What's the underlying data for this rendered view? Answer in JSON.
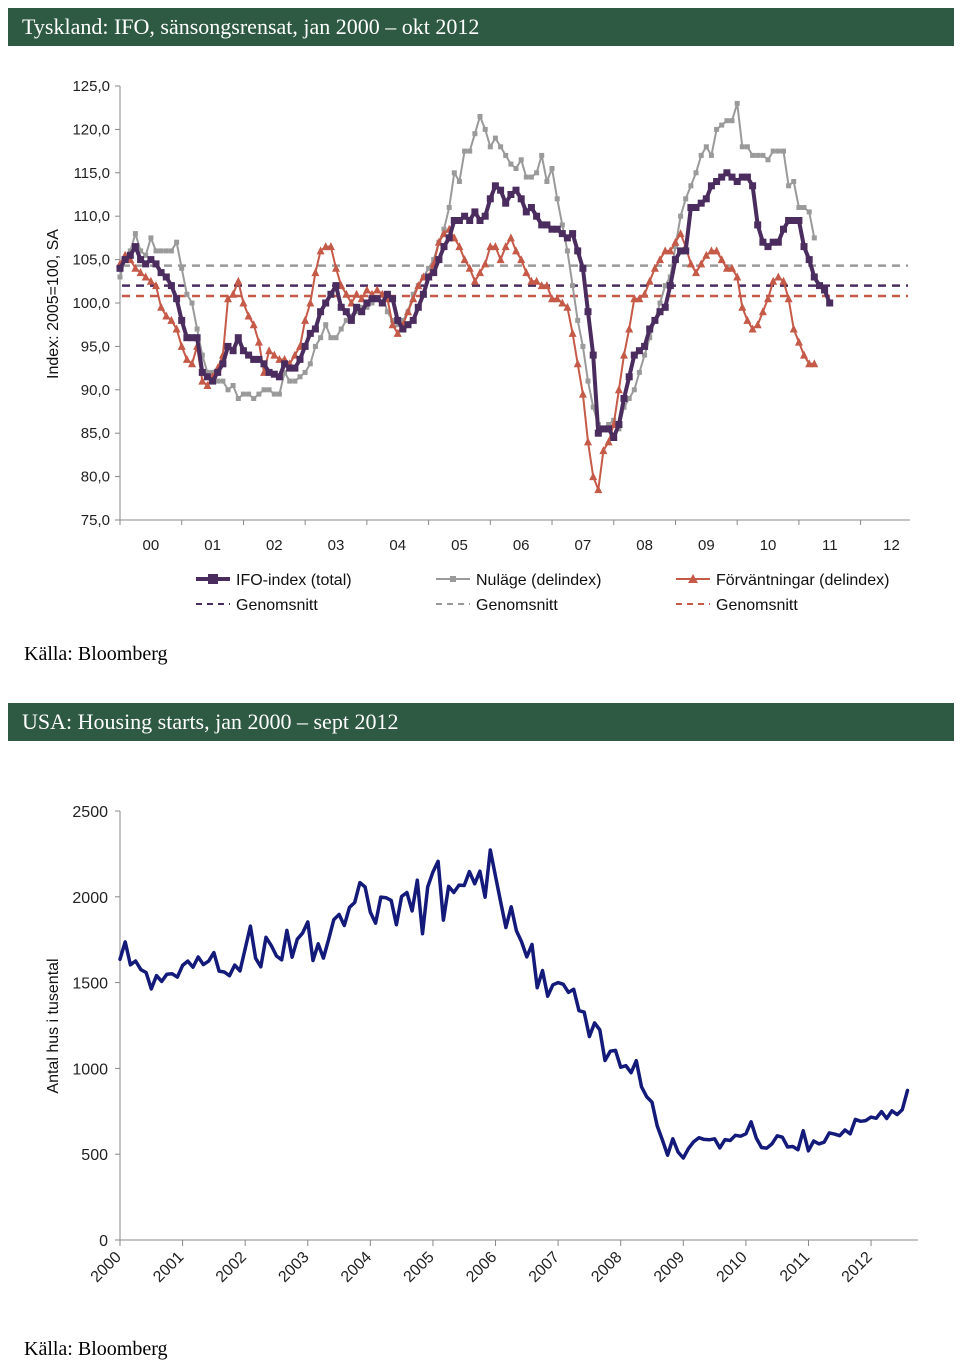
{
  "charts": {
    "ifo": {
      "header": "Tyskland: IFO, sänsongsrensat, jan 2000 – okt 2012",
      "source": "Källa: Bloomberg"
    },
    "housing": {
      "header": "USA: Housing starts, jan 2000 – sept 2012",
      "source": "Källa: Bloomberg"
    }
  },
  "chart_data": [
    {
      "type": "line",
      "title": "Tyskland: IFO, sänsongsrensat, jan 2000 – okt 2012",
      "ylabel": "Index: 2005=100, SA",
      "xlabel": "",
      "ylim": [
        75,
        125
      ],
      "yticks": [
        "75,0",
        "80,0",
        "85,0",
        "90,0",
        "95,0",
        "100,0",
        "105,0",
        "110,0",
        "115,0",
        "120,0",
        "125,0"
      ],
      "xticks": [
        "00",
        "01",
        "02",
        "03",
        "04",
        "05",
        "06",
        "07",
        "08",
        "09",
        "10",
        "11",
        "12"
      ],
      "x_start": 2000.0,
      "x_step": 0.08333,
      "series": [
        {
          "name": "IFO-index (total)",
          "color": "#4b2c5e",
          "marker": "square",
          "width": 4,
          "values": [
            104,
            105,
            105.5,
            106.5,
            105,
            104.5,
            105,
            104.5,
            103.5,
            103,
            102,
            100.5,
            98,
            96,
            96,
            96,
            92,
            91.5,
            91,
            92,
            93,
            95,
            94.5,
            96,
            94.5,
            94,
            93.5,
            93.5,
            93,
            92,
            91.8,
            91.5,
            93,
            92.5,
            92.5,
            93.5,
            95,
            96.5,
            97,
            99,
            100,
            101,
            102,
            99.5,
            99,
            98,
            99.5,
            99,
            100,
            100.5,
            100.5,
            100,
            101,
            100.5,
            98,
            97,
            97.5,
            98,
            99.5,
            101,
            103,
            103.5,
            105,
            106.5,
            107.5,
            109.5,
            109.5,
            110,
            109.5,
            110.5,
            109.5,
            110,
            112,
            113.5,
            113,
            111.5,
            112.5,
            113,
            112,
            110.5,
            111,
            110,
            109,
            109,
            108.5,
            108.5,
            108,
            107.5,
            108,
            106,
            104,
            99,
            94,
            85,
            85.5,
            85.5,
            84.5,
            86,
            89,
            91.5,
            94,
            94.5,
            95,
            97,
            98,
            99,
            99.5,
            102,
            105,
            106,
            106,
            111,
            111,
            111.5,
            112,
            113.5,
            114,
            114.5,
            115,
            114.5,
            114,
            114.5,
            114.5,
            113.5,
            109,
            107,
            106.5,
            107,
            107,
            108.5,
            109.5,
            109.5,
            109.5,
            106.5,
            105,
            103,
            102,
            101.5,
            100
          ]
        },
        {
          "name": "Nuläge (delindex)",
          "color": "#9a9a9a",
          "marker": "square",
          "width": 2,
          "values": [
            103,
            105,
            106,
            108,
            106,
            105.5,
            107.5,
            106,
            106,
            106,
            106,
            107,
            104,
            101,
            100,
            97,
            94,
            92,
            92,
            91,
            91,
            90,
            90.5,
            89,
            89.5,
            89.5,
            89,
            89.5,
            90,
            90,
            89.5,
            89.5,
            92,
            91,
            91,
            91.5,
            92,
            93,
            95,
            96,
            97.5,
            96,
            96,
            97,
            98,
            98.5,
            99,
            99.5,
            99.5,
            100,
            100.5,
            101,
            99,
            98,
            97.5,
            98,
            99,
            101,
            102,
            103,
            104,
            105,
            107,
            108.5,
            111,
            115,
            114,
            117.5,
            117.5,
            119.5,
            121.5,
            120,
            118,
            119,
            118,
            117,
            116,
            115.5,
            116.5,
            114.5,
            114.5,
            115,
            117,
            114,
            115.5,
            112,
            109,
            106,
            102,
            98,
            95,
            91,
            88,
            86,
            85.5,
            86,
            86.5,
            85.5,
            88,
            89,
            90,
            92,
            94,
            96,
            98,
            100,
            102,
            103,
            106.5,
            110,
            112,
            113.5,
            115,
            117,
            118,
            117,
            120,
            120.5,
            121,
            121,
            123,
            118,
            118,
            117,
            117,
            117,
            116.5,
            117.5,
            117.5,
            117.5,
            113.5,
            114,
            111,
            111,
            110.5,
            107.5
          ]
        },
        {
          "name": "Förväntningar (delindex)",
          "color": "#c55a48",
          "marker": "triangle",
          "width": 2,
          "values": [
            104.5,
            105.5,
            105,
            104,
            103.5,
            103,
            102.5,
            102,
            99.5,
            98.5,
            98,
            97,
            95,
            93.5,
            93,
            95,
            91,
            90.5,
            91.5,
            92.5,
            94,
            100.5,
            101,
            102.5,
            100,
            98.5,
            97.5,
            95.5,
            92,
            94.5,
            94,
            93.5,
            93.5,
            93,
            94,
            95,
            98,
            100,
            103.5,
            106,
            106.5,
            106.5,
            104,
            102,
            101,
            100,
            101,
            100.5,
            101.5,
            101,
            101.5,
            101,
            100.5,
            97.5,
            96.5,
            97.5,
            99,
            100.5,
            102,
            103,
            103,
            104.5,
            107,
            108,
            108.5,
            107.5,
            106.5,
            105,
            104,
            102.5,
            103.5,
            104.5,
            106.5,
            106.5,
            105,
            106.5,
            107.5,
            106,
            105,
            103.5,
            102.5,
            102.5,
            102,
            102,
            100.5,
            100.5,
            100,
            99.5,
            96.5,
            93,
            89.5,
            84,
            80,
            78.5,
            83,
            84,
            86,
            90,
            94,
            97,
            100.5,
            100.5,
            101,
            102.5,
            104,
            105,
            106,
            106,
            107,
            108,
            106.5,
            104.5,
            103.5,
            104.5,
            105.5,
            106,
            106,
            105,
            104,
            104,
            103,
            99.5,
            98,
            97,
            97.5,
            99,
            100.5,
            102.5,
            103,
            102.5,
            100.5,
            97,
            95.5,
            94,
            93,
            93
          ]
        },
        {
          "name": "Genomsnitt",
          "color": "#4b2c5e",
          "style": "dashed",
          "values": [
            102
          ]
        },
        {
          "name": "Genomsnitt",
          "color": "#9a9a9a",
          "style": "dashed",
          "values": [
            104.3
          ]
        },
        {
          "name": "Genomsnitt",
          "color": "#c55a48",
          "style": "dashed",
          "values": [
            100.8
          ]
        }
      ]
    },
    {
      "type": "line",
      "title": "USA: Housing starts, jan 2000 – sept 2012",
      "ylabel": "Antal hus i tusental",
      "xlabel": "",
      "ylim": [
        0,
        2500
      ],
      "yticks": [
        "0",
        "500",
        "1000",
        "1500",
        "2000",
        "2500"
      ],
      "xticks": [
        "2000",
        "2001",
        "2002",
        "2003",
        "2004",
        "2005",
        "2006",
        "2007",
        "2008",
        "2009",
        "2010",
        "2011",
        "2012"
      ],
      "x_start": 2000.0,
      "x_step": 0.08333,
      "series": [
        {
          "name": "Housing starts",
          "color": "#141a7a",
          "width": 3.5,
          "values": [
            1636,
            1737,
            1604,
            1626,
            1575,
            1559,
            1463,
            1541,
            1507,
            1549,
            1551,
            1532,
            1600,
            1625,
            1590,
            1649,
            1605,
            1625,
            1675,
            1567,
            1562,
            1540,
            1602,
            1568,
            1698,
            1829,
            1642,
            1592,
            1764,
            1717,
            1655,
            1633,
            1804,
            1648,
            1753,
            1788,
            1854,
            1629,
            1726,
            1643,
            1751,
            1867,
            1897,
            1833,
            1939,
            1967,
            2083,
            2057,
            1911,
            1846,
            1998,
            1995,
            1979,
            1837,
            2002,
            2025,
            1918,
            2097,
            1785,
            2057,
            2144,
            2207,
            1864,
            2061,
            2025,
            2068,
            2066,
            2147,
            2076,
            2149,
            1998,
            2273,
            2120,
            1969,
            1821,
            1942,
            1802,
            1737,
            1650,
            1722,
            1470,
            1570,
            1421,
            1487,
            1500,
            1490,
            1443,
            1461,
            1336,
            1328,
            1186,
            1265,
            1225,
            1046,
            1100,
            1105,
            1007,
            1016,
            975,
            1045,
            893,
            834,
            803,
            665,
            583,
            494,
            590,
            512,
            478,
            534,
            573,
            596,
            586,
            584,
            590,
            537,
            585,
            580,
            610,
            605,
            619,
            689,
            594,
            539,
            535,
            560,
            607,
            599,
            542,
            545,
            526,
            637,
            520,
            577,
            560,
            570,
            624,
            617,
            608,
            641,
            619,
            703,
            692,
            696,
            716,
            709,
            748,
            708,
            753,
            731,
            760,
            872
          ]
        }
      ]
    }
  ]
}
